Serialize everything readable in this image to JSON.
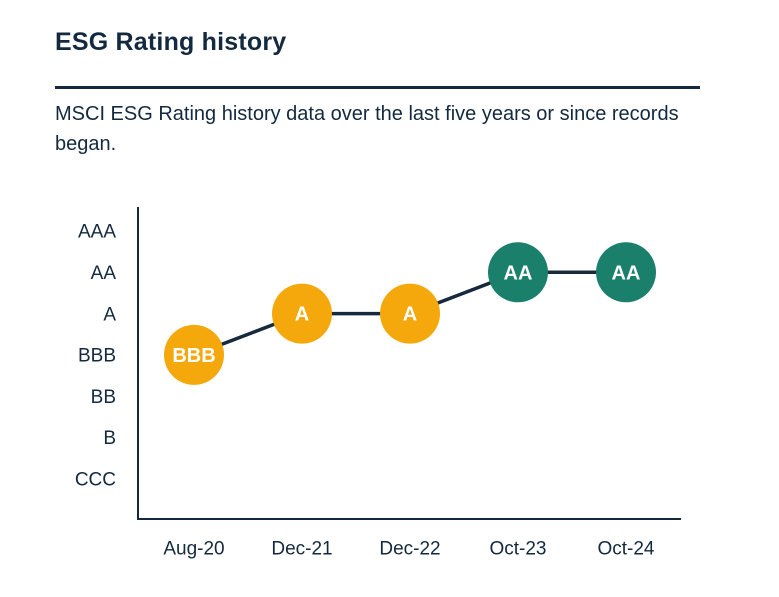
{
  "header": {
    "title": "ESG Rating history",
    "subtitle": "MSCI ESG Rating history data over the last five years or since records began."
  },
  "colors": {
    "text": "#13293F",
    "axis": "#13293F",
    "connector": "#16293D",
    "point_label": "#FFFFFF",
    "rating_yellow": "#F5A80C",
    "rating_green": "#1A7F6B"
  },
  "chart_data": {
    "type": "line",
    "title": "ESG Rating history",
    "xlabel": "",
    "ylabel": "",
    "x_labels": [
      "Aug-20",
      "Dec-21",
      "Dec-22",
      "Oct-23",
      "Oct-24"
    ],
    "y_categories_top_to_bottom": [
      "AAA",
      "AA",
      "A",
      "BBB",
      "BB",
      "B",
      "CCC"
    ],
    "series": [
      {
        "name": "MSCI ESG Rating",
        "values": [
          "BBB",
          "A",
          "A",
          "AA",
          "AA"
        ],
        "point_colors": [
          "#F5A80C",
          "#F5A80C",
          "#F5A80C",
          "#1A7F6B",
          "#1A7F6B"
        ]
      }
    ],
    "grid": false,
    "legend": false,
    "marker_style": "filled-circle-with-label"
  }
}
